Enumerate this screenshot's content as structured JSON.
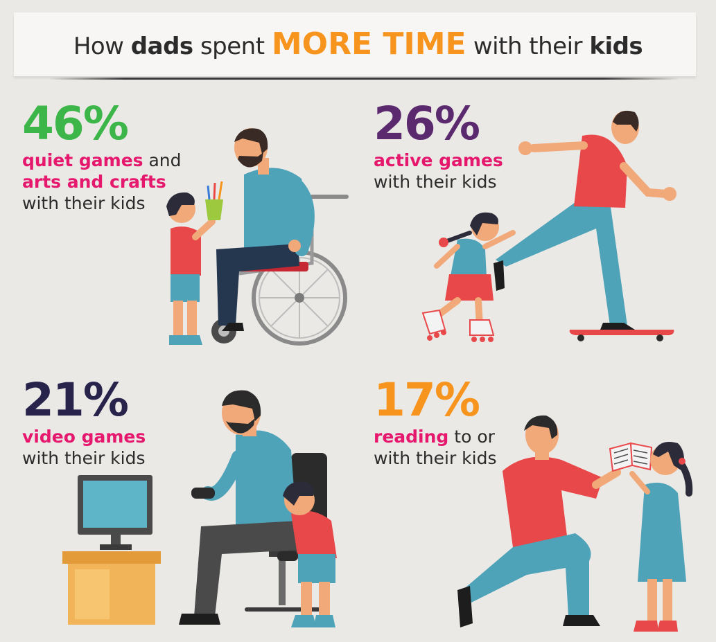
{
  "title": {
    "part1": "How ",
    "part2": "dads",
    "part3": " spent ",
    "part4": "MORE TIME",
    "part5": " with their ",
    "part6": "kids"
  },
  "stats": [
    {
      "percent": "46%",
      "highlight1": "quiet games",
      "text1": " and",
      "highlight2": "arts and crafts",
      "text2": "with their kids",
      "color": "#3cb549",
      "icon": "dad-wheelchair-child-crafts-illustration"
    },
    {
      "percent": "26%",
      "highlight1": "active games",
      "text1": "with their kids",
      "color": "#5b2a6e",
      "icon": "dad-skateboard-child-rollerskates-illustration"
    },
    {
      "percent": "21%",
      "highlight1": "video games",
      "text1": "with their kids",
      "color": "#27234b",
      "icon": "dad-child-video-games-illustration"
    },
    {
      "percent": "17%",
      "highlight1": "reading",
      "text1": " to or",
      "text2": "with their kids",
      "color": "#f7941d",
      "icon": "dad-kneeling-child-reading-illustration"
    }
  ],
  "colors": {
    "accent_orange": "#f7941d",
    "highlight_pink": "#e5186e",
    "background": "#ebe9e6"
  }
}
